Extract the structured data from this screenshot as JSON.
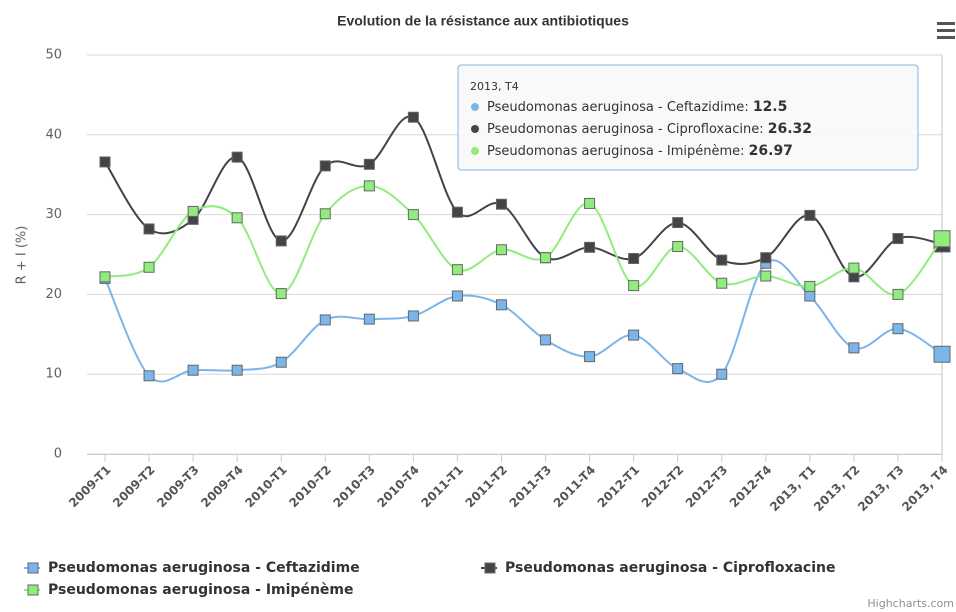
{
  "chart_data": {
    "type": "line",
    "title": "Evolution de la résistance aux antibiotiques",
    "y_axis_label": "R + I (%)",
    "categories": [
      "2009-T1",
      "2009-T2",
      "2009-T3",
      "2009-T4",
      "2010-T1",
      "2010-T2",
      "2010-T3",
      "2010-T4",
      "2011-T1",
      "2011-T2",
      "2011-T3",
      "2011-T4",
      "2012-T1",
      "2012-T2",
      "2012-T3",
      "2012-T4",
      "2013, T1",
      "2013, T2",
      "2013, T3",
      "2013, T4"
    ],
    "series": [
      {
        "name": "Pseudomonas aeruginosa - Ceftazidime",
        "color": "#7cb5ec",
        "values": [
          22.0,
          9.8,
          10.5,
          10.5,
          11.5,
          16.8,
          16.9,
          17.3,
          19.8,
          18.7,
          14.3,
          12.2,
          14.9,
          10.7,
          10.0,
          23.9,
          19.8,
          13.3,
          15.7,
          12.5
        ]
      },
      {
        "name": "Pseudomonas aeruginosa - Ciprofloxacine",
        "color": "#434348",
        "values": [
          36.6,
          28.2,
          29.4,
          37.2,
          26.7,
          36.1,
          36.3,
          42.2,
          30.3,
          31.3,
          24.6,
          25.9,
          24.5,
          29.0,
          24.3,
          24.6,
          29.9,
          22.2,
          27.0,
          26.32
        ]
      },
      {
        "name": "Pseudomonas aeruginosa - Imipénème",
        "color": "#90ed7d",
        "values": [
          22.2,
          23.4,
          30.4,
          29.6,
          20.1,
          30.1,
          33.6,
          30.0,
          23.1,
          25.6,
          24.6,
          31.4,
          21.1,
          26.0,
          21.4,
          22.3,
          21.0,
          23.3,
          20.0,
          26.97
        ]
      }
    ],
    "ylim": [
      0,
      50
    ],
    "yticks": [
      0,
      10,
      20,
      30,
      40,
      50
    ],
    "grid": true,
    "legend": "bottom",
    "tooltip_index": 19,
    "credits": "Highcharts.com"
  }
}
